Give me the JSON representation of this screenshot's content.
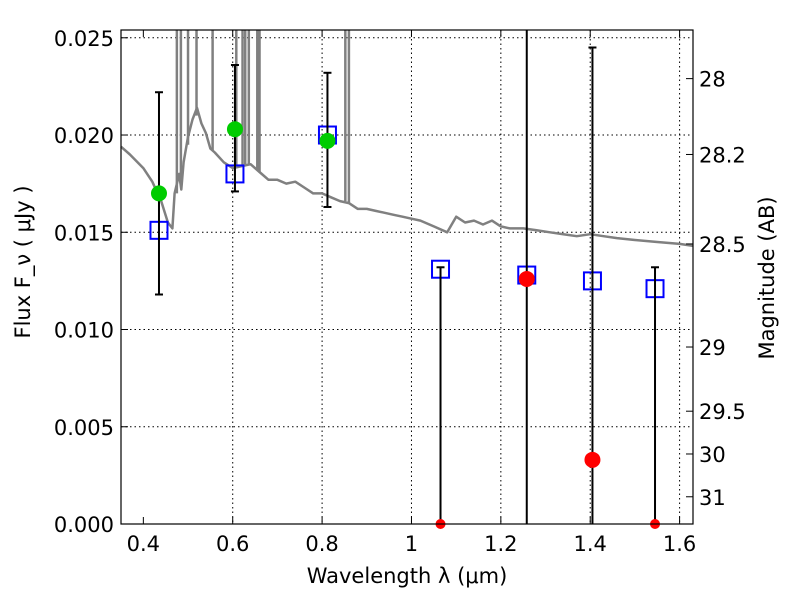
{
  "chart_data": {
    "type": "scatter",
    "title": "",
    "xlabel": "Wavelength  λ (μm)",
    "ylabel": "Flux  F_ν  ( μJy )",
    "y2label": "Magnitude (AB)",
    "xlim": [
      0.35,
      1.63
    ],
    "ylim": [
      0.0,
      0.0254
    ],
    "grid": true,
    "x_ticks": [
      0.4,
      0.6,
      0.8,
      1.0,
      1.2,
      1.4,
      1.6
    ],
    "x_tick_labels": [
      "0.4",
      "0.6",
      "0.8",
      "1",
      "1.2",
      "1.4",
      "1.6"
    ],
    "y_ticks": [
      0.0,
      0.005,
      0.01,
      0.015,
      0.02,
      0.025
    ],
    "y_tick_labels": [
      "0.000",
      "0.005",
      "0.010",
      "0.015",
      "0.020",
      "0.025"
    ],
    "y2_ticks": [
      {
        "label": "28",
        "flux": 0.0229
      },
      {
        "label": "28.2",
        "flux": 0.019
      },
      {
        "label": "28.5",
        "flux": 0.0144
      },
      {
        "label": "29",
        "flux": 0.0091
      },
      {
        "label": "29.5",
        "flux": 0.0058
      },
      {
        "label": "30",
        "flux": 0.0036
      },
      {
        "label": "31",
        "flux": 0.0014
      }
    ],
    "series": [
      {
        "kind": "line",
        "color": "#808080",
        "x": [
          0.35,
          0.37,
          0.4,
          0.42,
          0.44,
          0.455,
          0.465,
          0.47,
          0.475,
          0.48,
          0.485,
          0.49,
          0.5,
          0.51,
          0.52,
          0.53,
          0.54,
          0.55,
          0.56,
          0.58,
          0.6,
          0.62,
          0.64,
          0.66,
          0.68,
          0.7,
          0.72,
          0.74,
          0.76,
          0.78,
          0.8,
          0.82,
          0.84,
          0.86,
          0.88,
          0.9,
          0.92,
          0.94,
          0.96,
          0.98,
          1.0,
          1.02,
          1.05,
          1.08,
          1.1,
          1.12,
          1.14,
          1.16,
          1.18,
          1.2,
          1.22,
          1.25,
          1.28,
          1.31,
          1.34,
          1.37,
          1.4,
          1.43,
          1.46,
          1.5,
          1.55,
          1.6,
          1.63
        ],
        "y": [
          0.0194,
          0.019,
          0.0183,
          0.0176,
          0.0166,
          0.0155,
          0.0152,
          0.017,
          0.0175,
          0.018,
          0.0172,
          0.0186,
          0.0199,
          0.0208,
          0.0214,
          0.0206,
          0.0201,
          0.0193,
          0.0191,
          0.0186,
          0.0183,
          0.0184,
          0.0185,
          0.0181,
          0.0177,
          0.0177,
          0.0175,
          0.0176,
          0.0173,
          0.017,
          0.017,
          0.0168,
          0.0166,
          0.0165,
          0.0162,
          0.0162,
          0.0161,
          0.016,
          0.0159,
          0.0158,
          0.0157,
          0.0156,
          0.0153,
          0.015,
          0.0158,
          0.0155,
          0.0156,
          0.0154,
          0.0156,
          0.0153,
          0.0152,
          0.0152,
          0.0151,
          0.015,
          0.0149,
          0.0148,
          0.0149,
          0.0148,
          0.0147,
          0.0146,
          0.0145,
          0.0144,
          0.0143
        ]
      },
      {
        "kind": "emission-spikes",
        "color": "#808080",
        "x": [
          0.475,
          0.484,
          0.5,
          0.519,
          0.555,
          0.608,
          0.622,
          0.628,
          0.636,
          0.655,
          0.66,
          0.852,
          0.86
        ],
        "y_bottom": [
          0.017,
          0.0175,
          0.0195,
          0.021,
          0.0192,
          0.0183,
          0.0184,
          0.0185,
          0.0185,
          0.0182,
          0.0181,
          0.0166,
          0.0165
        ],
        "y_top": [
          0.0254,
          0.0254,
          0.0254,
          0.0254,
          0.0254,
          0.0254,
          0.0254,
          0.0254,
          0.0254,
          0.0254,
          0.0254,
          0.0254,
          0.0254
        ]
      },
      {
        "kind": "open-squares",
        "color": "#0000ff",
        "x": [
          0.435,
          0.605,
          0.812,
          1.065,
          1.258,
          1.405,
          1.545
        ],
        "y": [
          0.0151,
          0.018,
          0.02,
          0.0131,
          0.0128,
          0.0125,
          0.0121
        ]
      },
      {
        "kind": "detections",
        "color": "#00cc00",
        "x": [
          0.435,
          0.605,
          0.812
        ],
        "y": [
          0.017,
          0.0203,
          0.0197
        ],
        "err_low": [
          0.0118,
          0.0171,
          0.0163
        ],
        "err_high": [
          0.0222,
          0.0236,
          0.0232
        ]
      },
      {
        "kind": "upper-limits",
        "color": "#ff0000",
        "x": [
          1.065,
          1.258,
          1.405,
          1.545
        ],
        "y": [
          0.0,
          0.0126,
          0.0033,
          0.0
        ],
        "err_low": [
          0.0,
          0.0,
          0.0,
          0.0
        ],
        "err_high": [
          0.0132,
          0.0254,
          0.0245,
          0.0132
        ]
      }
    ]
  }
}
